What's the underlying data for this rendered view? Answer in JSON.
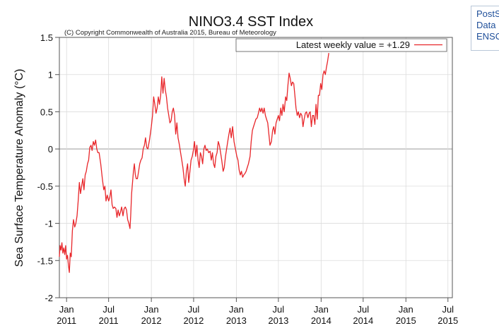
{
  "side_panel": {
    "lines": [
      "PostS",
      "Data",
      "ENSO"
    ]
  },
  "chart_data": {
    "type": "line",
    "title": "NINO3.4 SST Index",
    "subtitle": "(C) Copyright Commonwealth of Australia 2015, Bureau of Meteorology",
    "ylabel": "Sea Surface Temperature Anomaly (°C)",
    "xlabel": "",
    "ylim": [
      -2,
      1.5
    ],
    "xlim": [
      "2010-12-01",
      "2015-07-20"
    ],
    "yticks": [
      -2,
      -1.5,
      -1,
      -0.5,
      0,
      0.5,
      1,
      1.5
    ],
    "ytick_labels": [
      "-2",
      "-1.5",
      "-1",
      "-0.5",
      "0",
      "0.5",
      "1",
      "1.5"
    ],
    "xticks": [
      {
        "date": "2011-01-01",
        "line1": "Jan",
        "line2": "2011"
      },
      {
        "date": "2011-07-01",
        "line1": "Jul",
        "line2": "2011"
      },
      {
        "date": "2012-01-01",
        "line1": "Jan",
        "line2": "2012"
      },
      {
        "date": "2012-07-01",
        "line1": "Jul",
        "line2": "2012"
      },
      {
        "date": "2013-01-01",
        "line1": "Jan",
        "line2": "2013"
      },
      {
        "date": "2013-07-01",
        "line1": "Jul",
        "line2": "2013"
      },
      {
        "date": "2014-01-01",
        "line1": "Jan",
        "line2": "2014"
      },
      {
        "date": "2014-07-01",
        "line1": "Jul",
        "line2": "2014"
      },
      {
        "date": "2015-01-01",
        "line1": "Jan",
        "line2": "2015"
      },
      {
        "date": "2015-07-01",
        "line1": "Jul",
        "line2": "2015"
      }
    ],
    "grid": true,
    "legend_position": "top-right",
    "series": [
      {
        "name": "Latest weekly value = +1.29",
        "color": "#e8262a",
        "points": [
          [
            "2010-12-01",
            -1.45
          ],
          [
            "2010-12-04",
            -1.3
          ],
          [
            "2010-12-08",
            -1.36
          ],
          [
            "2010-12-12",
            -1.26
          ],
          [
            "2010-12-16",
            -1.4
          ],
          [
            "2010-12-20",
            -1.33
          ],
          [
            "2010-12-24",
            -1.42
          ],
          [
            "2010-12-28",
            -1.3
          ],
          [
            "2011-01-01",
            -1.48
          ],
          [
            "2011-01-05",
            -1.43
          ],
          [
            "2011-01-09",
            -1.56
          ],
          [
            "2011-01-13",
            -1.66
          ],
          [
            "2011-01-17",
            -1.4
          ],
          [
            "2011-01-21",
            -1.45
          ],
          [
            "2011-01-26",
            -1.1
          ],
          [
            "2011-01-31",
            -0.95
          ],
          [
            "2011-02-05",
            -1.05
          ],
          [
            "2011-02-10",
            -1.0
          ],
          [
            "2011-02-15",
            -0.9
          ],
          [
            "2011-02-20",
            -0.7
          ],
          [
            "2011-02-25",
            -0.45
          ],
          [
            "2011-03-02",
            -0.6
          ],
          [
            "2011-03-07",
            -0.5
          ],
          [
            "2011-03-12",
            -0.4
          ],
          [
            "2011-03-17",
            -0.55
          ],
          [
            "2011-03-22",
            -0.35
          ],
          [
            "2011-03-27",
            -0.3
          ],
          [
            "2011-04-01",
            -0.2
          ],
          [
            "2011-04-06",
            -0.15
          ],
          [
            "2011-04-11",
            0.02
          ],
          [
            "2011-04-16",
            0.05
          ],
          [
            "2011-04-21",
            -0.02
          ],
          [
            "2011-04-26",
            0.1
          ],
          [
            "2011-05-01",
            0.05
          ],
          [
            "2011-05-06",
            0.12
          ],
          [
            "2011-05-11",
            0.0
          ],
          [
            "2011-05-16",
            -0.05
          ],
          [
            "2011-05-21",
            -0.05
          ],
          [
            "2011-05-28",
            -0.2
          ],
          [
            "2011-06-04",
            -0.4
          ],
          [
            "2011-06-10",
            -0.55
          ],
          [
            "2011-06-15",
            -0.5
          ],
          [
            "2011-06-20",
            -0.7
          ],
          [
            "2011-06-25",
            -0.62
          ],
          [
            "2011-07-01",
            -0.7
          ],
          [
            "2011-07-06",
            -0.65
          ],
          [
            "2011-07-11",
            -0.55
          ],
          [
            "2011-07-16",
            -0.75
          ],
          [
            "2011-07-21",
            -0.8
          ],
          [
            "2011-07-26",
            -0.78
          ],
          [
            "2011-08-01",
            -0.8
          ],
          [
            "2011-08-06",
            -0.92
          ],
          [
            "2011-08-11",
            -0.82
          ],
          [
            "2011-08-16",
            -0.9
          ],
          [
            "2011-08-21",
            -0.85
          ],
          [
            "2011-08-26",
            -0.78
          ],
          [
            "2011-09-01",
            -0.9
          ],
          [
            "2011-09-06",
            -0.8
          ],
          [
            "2011-09-11",
            -0.78
          ],
          [
            "2011-09-16",
            -0.82
          ],
          [
            "2011-09-21",
            -0.95
          ],
          [
            "2011-09-26",
            -1.0
          ],
          [
            "2011-10-01",
            -1.07
          ],
          [
            "2011-10-04",
            -0.9
          ],
          [
            "2011-10-08",
            -0.6
          ],
          [
            "2011-10-12",
            -0.45
          ],
          [
            "2011-10-16",
            -0.3
          ],
          [
            "2011-10-20",
            -0.2
          ],
          [
            "2011-10-24",
            -0.35
          ],
          [
            "2011-10-28",
            -0.4
          ],
          [
            "2011-11-02",
            -0.4
          ],
          [
            "2011-11-07",
            -0.3
          ],
          [
            "2011-11-12",
            -0.2
          ],
          [
            "2011-11-17",
            -0.15
          ],
          [
            "2011-11-22",
            -0.12
          ],
          [
            "2011-11-27",
            0.0
          ],
          [
            "2011-12-02",
            0.05
          ],
          [
            "2011-12-07",
            0.15
          ],
          [
            "2011-12-12",
            0.02
          ],
          [
            "2011-12-17",
            0.0
          ],
          [
            "2011-12-24",
            0.12
          ],
          [
            "2012-01-01",
            0.3
          ],
          [
            "2012-01-06",
            0.45
          ],
          [
            "2012-01-11",
            0.7
          ],
          [
            "2012-01-16",
            0.6
          ],
          [
            "2012-01-21",
            0.48
          ],
          [
            "2012-01-26",
            0.55
          ],
          [
            "2012-01-31",
            0.7
          ],
          [
            "2012-02-05",
            0.6
          ],
          [
            "2012-02-10",
            0.72
          ],
          [
            "2012-02-15",
            0.97
          ],
          [
            "2012-02-20",
            0.75
          ],
          [
            "2012-02-25",
            0.95
          ],
          [
            "2012-03-01",
            0.8
          ],
          [
            "2012-03-06",
            0.7
          ],
          [
            "2012-03-11",
            0.55
          ],
          [
            "2012-03-16",
            0.45
          ],
          [
            "2012-03-21",
            0.35
          ],
          [
            "2012-03-26",
            0.38
          ],
          [
            "2012-03-31",
            0.5
          ],
          [
            "2012-04-05",
            0.55
          ],
          [
            "2012-04-10",
            0.45
          ],
          [
            "2012-04-15",
            0.2
          ],
          [
            "2012-04-20",
            0.35
          ],
          [
            "2012-04-25",
            0.15
          ],
          [
            "2012-05-01",
            0.05
          ],
          [
            "2012-05-06",
            -0.05
          ],
          [
            "2012-05-11",
            -0.15
          ],
          [
            "2012-05-16",
            -0.25
          ],
          [
            "2012-05-21",
            -0.4
          ],
          [
            "2012-05-26",
            -0.5
          ],
          [
            "2012-05-31",
            -0.3
          ],
          [
            "2012-06-05",
            -0.2
          ],
          [
            "2012-06-10",
            -0.45
          ],
          [
            "2012-06-15",
            -0.3
          ],
          [
            "2012-06-20",
            -0.15
          ],
          [
            "2012-06-25",
            -0.1
          ],
          [
            "2012-07-01",
            0.0
          ],
          [
            "2012-07-05",
            0.1
          ],
          [
            "2012-07-10",
            -0.1
          ],
          [
            "2012-07-15",
            0.05
          ],
          [
            "2012-07-20",
            -0.15
          ],
          [
            "2012-07-25",
            -0.25
          ],
          [
            "2012-07-30",
            -0.05
          ],
          [
            "2012-08-04",
            -0.1
          ],
          [
            "2012-08-09",
            -0.2
          ],
          [
            "2012-08-14",
            0.0
          ],
          [
            "2012-08-19",
            0.05
          ],
          [
            "2012-08-24",
            -0.02
          ],
          [
            "2012-08-29",
            0.0
          ],
          [
            "2012-09-04",
            -0.05
          ],
          [
            "2012-09-10",
            -0.03
          ],
          [
            "2012-09-15",
            -0.15
          ],
          [
            "2012-09-20",
            -0.05
          ],
          [
            "2012-09-25",
            -0.2
          ],
          [
            "2012-09-30",
            -0.25
          ],
          [
            "2012-10-05",
            -0.1
          ],
          [
            "2012-10-10",
            -0.05
          ],
          [
            "2012-10-15",
            0.1
          ],
          [
            "2012-10-20",
            0.05
          ],
          [
            "2012-10-25",
            -0.05
          ],
          [
            "2012-10-30",
            -0.15
          ],
          [
            "2012-11-05",
            -0.3
          ],
          [
            "2012-11-10",
            -0.25
          ],
          [
            "2012-11-15",
            -0.1
          ],
          [
            "2012-11-20",
            0.0
          ],
          [
            "2012-11-25",
            0.1
          ],
          [
            "2012-11-30",
            0.2
          ],
          [
            "2012-12-05",
            0.28
          ],
          [
            "2012-12-10",
            0.15
          ],
          [
            "2012-12-16",
            0.3
          ],
          [
            "2012-12-22",
            0.1
          ],
          [
            "2012-12-28",
            0.0
          ],
          [
            "2013-01-03",
            -0.1
          ],
          [
            "2013-01-08",
            -0.15
          ],
          [
            "2013-01-13",
            -0.28
          ],
          [
            "2013-01-18",
            -0.35
          ],
          [
            "2013-01-23",
            -0.3
          ],
          [
            "2013-01-28",
            -0.38
          ],
          [
            "2013-02-02",
            -0.35
          ],
          [
            "2013-02-07",
            -0.33
          ],
          [
            "2013-02-12",
            -0.3
          ],
          [
            "2013-02-17",
            -0.25
          ],
          [
            "2013-02-22",
            -0.2
          ],
          [
            "2013-03-01",
            -0.1
          ],
          [
            "2013-03-06",
            0.1
          ],
          [
            "2013-03-11",
            0.25
          ],
          [
            "2013-03-16",
            0.3
          ],
          [
            "2013-03-21",
            0.35
          ],
          [
            "2013-03-26",
            0.4
          ],
          [
            "2013-04-01",
            0.42
          ],
          [
            "2013-04-06",
            0.48
          ],
          [
            "2013-04-11",
            0.55
          ],
          [
            "2013-04-16",
            0.5
          ],
          [
            "2013-04-21",
            0.55
          ],
          [
            "2013-04-26",
            0.48
          ],
          [
            "2013-05-01",
            0.55
          ],
          [
            "2013-05-06",
            0.45
          ],
          [
            "2013-05-11",
            0.4
          ],
          [
            "2013-05-16",
            0.35
          ],
          [
            "2013-05-21",
            0.2
          ],
          [
            "2013-05-26",
            0.05
          ],
          [
            "2013-06-01",
            0.1
          ],
          [
            "2013-06-06",
            0.25
          ],
          [
            "2013-06-11",
            0.3
          ],
          [
            "2013-06-16",
            0.2
          ],
          [
            "2013-06-21",
            0.35
          ],
          [
            "2013-06-26",
            0.4
          ],
          [
            "2013-07-01",
            0.45
          ],
          [
            "2013-07-06",
            0.38
          ],
          [
            "2013-07-11",
            0.55
          ],
          [
            "2013-07-16",
            0.45
          ],
          [
            "2013-07-21",
            0.6
          ],
          [
            "2013-07-26",
            0.5
          ],
          [
            "2013-08-01",
            0.7
          ],
          [
            "2013-08-06",
            0.65
          ],
          [
            "2013-08-11",
            0.85
          ],
          [
            "2013-08-16",
            1.02
          ],
          [
            "2013-08-21",
            0.95
          ],
          [
            "2013-08-26",
            0.85
          ],
          [
            "2013-08-31",
            0.9
          ],
          [
            "2013-09-05",
            0.88
          ],
          [
            "2013-09-10",
            0.72
          ],
          [
            "2013-09-15",
            0.55
          ],
          [
            "2013-09-20",
            0.45
          ],
          [
            "2013-09-25",
            0.5
          ],
          [
            "2013-09-30",
            0.42
          ],
          [
            "2013-10-05",
            0.48
          ],
          [
            "2013-10-10",
            0.45
          ],
          [
            "2013-10-15",
            0.3
          ],
          [
            "2013-10-20",
            0.4
          ],
          [
            "2013-10-25",
            0.48
          ],
          [
            "2013-10-30",
            0.5
          ],
          [
            "2013-11-05",
            0.42
          ],
          [
            "2013-11-10",
            0.48
          ],
          [
            "2013-11-15",
            0.5
          ],
          [
            "2013-11-20",
            0.3
          ],
          [
            "2013-11-25",
            0.45
          ],
          [
            "2013-11-30",
            0.45
          ],
          [
            "2013-12-05",
            0.33
          ],
          [
            "2013-12-10",
            0.6
          ],
          [
            "2013-12-15",
            0.4
          ],
          [
            "2013-12-20",
            0.72
          ],
          [
            "2013-12-25",
            0.72
          ],
          [
            "2013-12-30",
            0.88
          ],
          [
            "2014-01-04",
            0.8
          ],
          [
            "2014-01-09",
            1.0
          ],
          [
            "2014-01-14",
            1.05
          ],
          [
            "2014-01-19",
            1.0
          ],
          [
            "2014-01-24",
            1.1
          ],
          [
            "2014-01-29",
            1.18
          ],
          [
            "2014-02-03",
            1.29
          ]
        ]
      }
    ]
  }
}
